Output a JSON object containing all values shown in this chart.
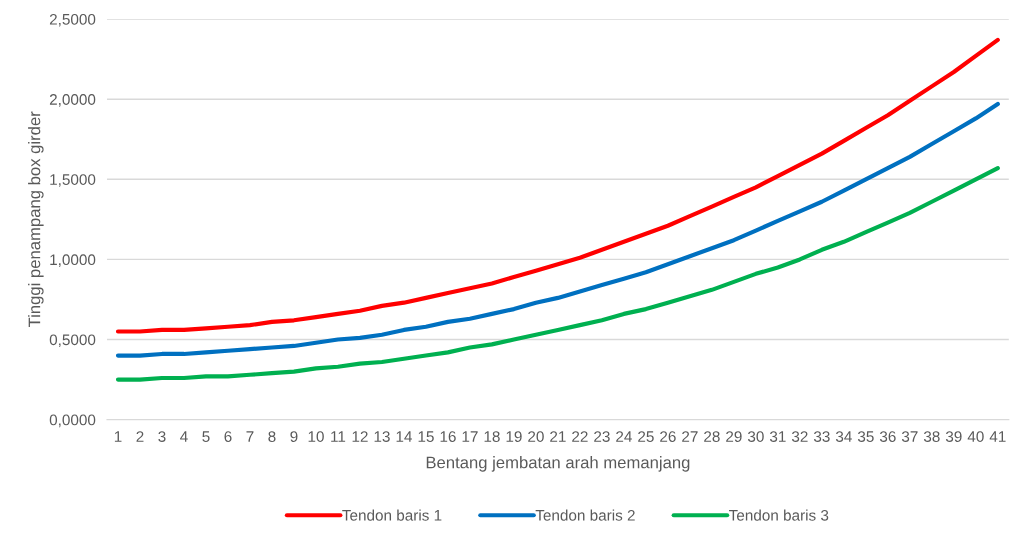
{
  "chart_data": {
    "type": "line",
    "xlabel": "Bentang jembatan arah memanjang",
    "ylabel": "Tinggi penampang box girder",
    "categories": [
      "1",
      "2",
      "3",
      "4",
      "5",
      "6",
      "7",
      "8",
      "9",
      "10",
      "11",
      "12",
      "13",
      "14",
      "15",
      "16",
      "17",
      "18",
      "19",
      "20",
      "21",
      "22",
      "23",
      "24",
      "25",
      "26",
      "27",
      "28",
      "29",
      "30",
      "31",
      "32",
      "33",
      "34",
      "35",
      "36",
      "37",
      "38",
      "39",
      "40",
      "41"
    ],
    "series": [
      {
        "name": "Tendon baris 1",
        "color": "#ff0000",
        "values": [
          0.55,
          0.55,
          0.56,
          0.56,
          0.57,
          0.58,
          0.59,
          0.61,
          0.62,
          0.64,
          0.66,
          0.68,
          0.71,
          0.73,
          0.76,
          0.79,
          0.82,
          0.85,
          0.89,
          0.93,
          0.97,
          1.01,
          1.06,
          1.11,
          1.16,
          1.21,
          1.27,
          1.33,
          1.39,
          1.45,
          1.52,
          1.59,
          1.66,
          1.74,
          1.82,
          1.9,
          1.99,
          2.08,
          2.17,
          2.27,
          2.37
        ]
      },
      {
        "name": "Tendon baris 2",
        "color": "#0070c0",
        "values": [
          0.4,
          0.4,
          0.41,
          0.41,
          0.42,
          0.43,
          0.44,
          0.45,
          0.46,
          0.48,
          0.5,
          0.51,
          0.53,
          0.56,
          0.58,
          0.61,
          0.63,
          0.66,
          0.69,
          0.73,
          0.76,
          0.8,
          0.84,
          0.88,
          0.92,
          0.97,
          1.02,
          1.07,
          1.12,
          1.18,
          1.24,
          1.3,
          1.36,
          1.43,
          1.5,
          1.57,
          1.64,
          1.72,
          1.8,
          1.88,
          1.97
        ]
      },
      {
        "name": "Tendon baris 3",
        "color": "#00b050",
        "values": [
          0.25,
          0.25,
          0.26,
          0.26,
          0.27,
          0.27,
          0.28,
          0.29,
          0.3,
          0.32,
          0.33,
          0.35,
          0.36,
          0.38,
          0.4,
          0.42,
          0.45,
          0.47,
          0.5,
          0.53,
          0.56,
          0.59,
          0.62,
          0.66,
          0.69,
          0.73,
          0.77,
          0.81,
          0.86,
          0.91,
          0.95,
          1.0,
          1.06,
          1.11,
          1.17,
          1.23,
          1.29,
          1.36,
          1.43,
          1.5,
          1.57
        ]
      }
    ],
    "ylim": [
      0,
      2.5
    ],
    "yticks": [
      {
        "value": 0,
        "label": "0,0000"
      },
      {
        "value": 0.5,
        "label": "0,5000"
      },
      {
        "value": 1,
        "label": "1,0000"
      },
      {
        "value": 1.5,
        "label": "1,5000"
      },
      {
        "value": 2,
        "label": "2,0000"
      },
      {
        "value": 2.5,
        "label": "2,5000"
      }
    ],
    "grid": "y",
    "legend": "bottom",
    "marker": "none",
    "line_style": "solid"
  }
}
